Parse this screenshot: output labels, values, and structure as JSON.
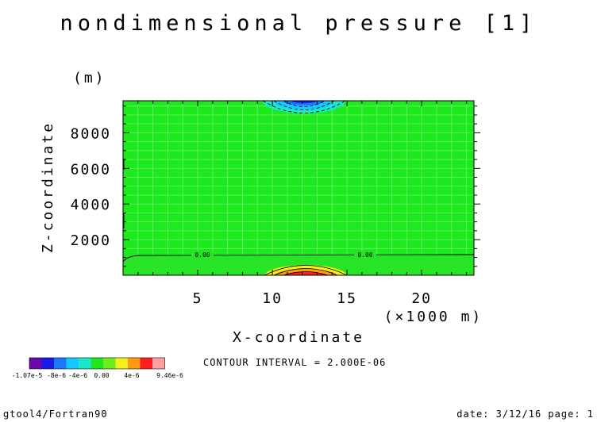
{
  "chart_data": {
    "type": "heatmap",
    "title": "nondimensional pressure [1]",
    "xlabel": "X-coordinate",
    "x_units": "(×1000 m)",
    "ylabel": "Z-coordinate",
    "y_units": "(m)",
    "xlim": [
      0,
      23.5
    ],
    "ylim": [
      0,
      9800
    ],
    "x_ticks": [
      "5",
      "10",
      "15",
      "20"
    ],
    "x_tick_values": [
      5,
      10,
      15,
      20
    ],
    "y_ticks": [
      "2000",
      "4000",
      "6000",
      "8000"
    ],
    "y_tick_values": [
      2000,
      4000,
      6000,
      8000
    ],
    "background_value": 0.0,
    "anomalies": [
      {
        "x_center": 12.5,
        "z_edge": "top",
        "min_value": -1.07e-05,
        "description": "negative pressure lobe at top boundary"
      },
      {
        "x_center": 12.5,
        "z_edge": "bottom",
        "max_value": 9.46e-06,
        "description": "positive pressure lobe at bottom boundary"
      }
    ],
    "contour_labels": [
      {
        "text": "0.00",
        "x": 5.0,
        "z": 1200
      },
      {
        "text": "0.00",
        "x": 16.0,
        "z": 1200
      }
    ],
    "contour_interval": "CONTOUR INTERVAL = 2.000E-06",
    "colorbar": {
      "colors": [
        "#6a0aa8",
        "#1a1ae8",
        "#1a78ff",
        "#16c8ff",
        "#1ae8c8",
        "#1ee81e",
        "#6eee1a",
        "#f2f21a",
        "#ff9a14",
        "#ff1e1e",
        "#ffa0a0"
      ],
      "labels": [
        "-1.07e-5",
        "-8e-6",
        "-4e-6",
        "0.00",
        "4e-6",
        "9.46e-6"
      ]
    }
  },
  "footer": {
    "left": "gtool4/Fortran90",
    "right": "date: 3/12/16 page: 1"
  }
}
